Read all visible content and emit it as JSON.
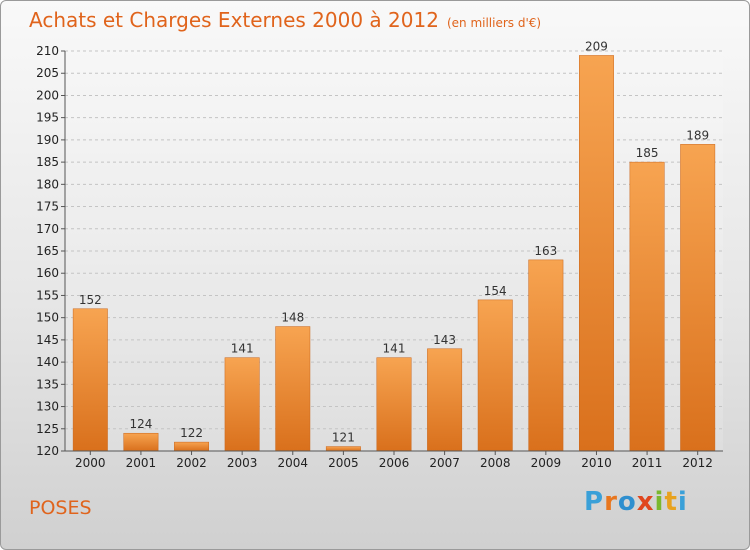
{
  "title": "Achats et Charges Externes 2000 à 2012",
  "subtitle": "(en milliers d'€)",
  "place": "POSES",
  "logo": {
    "text": "Proxiti",
    "colors": [
      "#3aa0d8",
      "#e8761e",
      "#2f8fcf",
      "#e0461e",
      "#7ab82f",
      "#e8a21e",
      "#3aa0d8"
    ]
  },
  "chart_data": {
    "type": "bar",
    "categories": [
      "2000",
      "2001",
      "2002",
      "2003",
      "2004",
      "2005",
      "2006",
      "2007",
      "2008",
      "2009",
      "2010",
      "2011",
      "2012"
    ],
    "values": [
      152,
      124,
      122,
      141,
      148,
      121,
      141,
      143,
      154,
      163,
      209,
      185,
      189
    ],
    "ylim": [
      120,
      210
    ],
    "yticks": [
      120,
      125,
      130,
      135,
      140,
      145,
      150,
      155,
      160,
      165,
      170,
      175,
      180,
      185,
      190,
      195,
      200,
      205,
      210
    ],
    "grid": true,
    "bar_color": "#ef8a30"
  }
}
